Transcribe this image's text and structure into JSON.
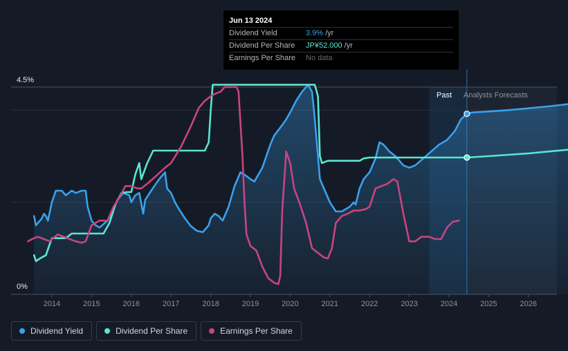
{
  "tooltip": {
    "date": "Jun 13 2024",
    "rows": [
      {
        "label": "Dividend Yield",
        "value": "3.9%",
        "unit": "/yr"
      },
      {
        "label": "Dividend Per Share",
        "value": "JP¥52.000",
        "unit": "/yr"
      },
      {
        "label": "Earnings Per Share",
        "value": "No data",
        "unit": ""
      }
    ]
  },
  "regions": {
    "past": "Past",
    "forecast": "Analysts Forecasts"
  },
  "legend": [
    {
      "label": "Dividend Yield",
      "color": "#3aa1ee"
    },
    {
      "label": "Dividend Per Share",
      "color": "#58e7d2"
    },
    {
      "label": "Earnings Per Share",
      "color": "#c8457e"
    }
  ],
  "chart_data": {
    "type": "line",
    "title": "",
    "y_axis": {
      "min_label": "0%",
      "max_label": "4.5%",
      "ylim": [
        0,
        4.5
      ]
    },
    "x_axis": {
      "ticks": [
        "2014",
        "2015",
        "2016",
        "2017",
        "2018",
        "2019",
        "2020",
        "2021",
        "2022",
        "2023",
        "2024",
        "2025",
        "2026"
      ],
      "xlim": [
        2013.3,
        2027.0
      ]
    },
    "past_region_start": 2023.5,
    "forecast_start": 2024.45,
    "series": [
      {
        "name": "Dividend Yield",
        "color": "#3aa1ee",
        "filled": true,
        "points": [
          [
            2013.55,
            1.7
          ],
          [
            2013.6,
            1.5
          ],
          [
            2013.75,
            1.65
          ],
          [
            2013.8,
            1.75
          ],
          [
            2013.85,
            1.7
          ],
          [
            2013.9,
            1.6
          ],
          [
            2014.0,
            2.0
          ],
          [
            2014.1,
            2.25
          ],
          [
            2014.25,
            2.25
          ],
          [
            2014.35,
            2.15
          ],
          [
            2014.5,
            2.25
          ],
          [
            2014.6,
            2.2
          ],
          [
            2014.75,
            2.25
          ],
          [
            2014.85,
            2.25
          ],
          [
            2014.9,
            1.9
          ],
          [
            2015.0,
            1.6
          ],
          [
            2015.1,
            1.5
          ],
          [
            2015.2,
            1.45
          ],
          [
            2015.4,
            1.6
          ],
          [
            2015.5,
            1.75
          ],
          [
            2015.65,
            2.05
          ],
          [
            2015.8,
            2.2
          ],
          [
            2015.95,
            2.15
          ],
          [
            2016.0,
            2.0
          ],
          [
            2016.1,
            2.15
          ],
          [
            2016.2,
            2.2
          ],
          [
            2016.3,
            1.75
          ],
          [
            2016.35,
            2.05
          ],
          [
            2016.5,
            2.25
          ],
          [
            2016.7,
            2.5
          ],
          [
            2016.85,
            2.65
          ],
          [
            2016.9,
            2.3
          ],
          [
            2017.0,
            2.2
          ],
          [
            2017.1,
            2.0
          ],
          [
            2017.2,
            1.85
          ],
          [
            2017.35,
            1.65
          ],
          [
            2017.5,
            1.48
          ],
          [
            2017.65,
            1.38
          ],
          [
            2017.8,
            1.35
          ],
          [
            2017.95,
            1.5
          ],
          [
            2018.0,
            1.65
          ],
          [
            2018.1,
            1.75
          ],
          [
            2018.2,
            1.7
          ],
          [
            2018.3,
            1.6
          ],
          [
            2018.45,
            1.9
          ],
          [
            2018.6,
            2.35
          ],
          [
            2018.75,
            2.65
          ],
          [
            2018.85,
            2.6
          ],
          [
            2019.0,
            2.5
          ],
          [
            2019.1,
            2.45
          ],
          [
            2019.3,
            2.75
          ],
          [
            2019.5,
            3.25
          ],
          [
            2019.6,
            3.45
          ],
          [
            2019.75,
            3.62
          ],
          [
            2019.9,
            3.8
          ],
          [
            2020.0,
            3.95
          ],
          [
            2020.15,
            4.2
          ],
          [
            2020.3,
            4.4
          ],
          [
            2020.45,
            4.55
          ],
          [
            2020.55,
            4.4
          ],
          [
            2020.6,
            4.0
          ],
          [
            2020.7,
            3.0
          ],
          [
            2020.75,
            2.5
          ],
          [
            2020.85,
            2.3
          ],
          [
            2021.0,
            2.0
          ],
          [
            2021.15,
            1.8
          ],
          [
            2021.3,
            1.8
          ],
          [
            2021.5,
            1.9
          ],
          [
            2021.6,
            2.0
          ],
          [
            2021.65,
            1.95
          ],
          [
            2021.75,
            2.3
          ],
          [
            2021.85,
            2.5
          ],
          [
            2022.0,
            2.65
          ],
          [
            2022.15,
            2.95
          ],
          [
            2022.25,
            3.3
          ],
          [
            2022.35,
            3.25
          ],
          [
            2022.5,
            3.1
          ],
          [
            2022.65,
            3.0
          ],
          [
            2022.85,
            2.8
          ],
          [
            2023.0,
            2.75
          ],
          [
            2023.15,
            2.8
          ],
          [
            2023.35,
            2.95
          ],
          [
            2023.55,
            3.1
          ],
          [
            2023.75,
            3.25
          ],
          [
            2023.95,
            3.35
          ],
          [
            2024.15,
            3.55
          ],
          [
            2024.3,
            3.8
          ],
          [
            2024.45,
            3.92
          ],
          [
            2024.6,
            3.95
          ],
          [
            2025.0,
            3.97
          ],
          [
            2025.5,
            4.0
          ],
          [
            2026.0,
            4.04
          ],
          [
            2026.5,
            4.08
          ],
          [
            2027.0,
            4.13
          ]
        ]
      },
      {
        "name": "Dividend Per Share",
        "color": "#58e7d2",
        "filled": false,
        "points": [
          [
            2013.55,
            0.85
          ],
          [
            2013.6,
            0.72
          ],
          [
            2013.7,
            0.78
          ],
          [
            2013.85,
            0.85
          ],
          [
            2013.95,
            1.1
          ],
          [
            2014.0,
            1.22
          ],
          [
            2014.2,
            1.22
          ],
          [
            2014.35,
            1.22
          ],
          [
            2014.5,
            1.32
          ],
          [
            2014.8,
            1.32
          ],
          [
            2015.0,
            1.32
          ],
          [
            2015.15,
            1.32
          ],
          [
            2015.3,
            1.32
          ],
          [
            2015.45,
            1.55
          ],
          [
            2015.6,
            1.95
          ],
          [
            2015.75,
            2.2
          ],
          [
            2015.9,
            2.22
          ],
          [
            2016.0,
            2.22
          ],
          [
            2016.1,
            2.6
          ],
          [
            2016.2,
            2.85
          ],
          [
            2016.25,
            2.5
          ],
          [
            2016.4,
            2.85
          ],
          [
            2016.55,
            3.12
          ],
          [
            2016.65,
            3.12
          ],
          [
            2017.0,
            3.12
          ],
          [
            2017.5,
            3.12
          ],
          [
            2017.85,
            3.12
          ],
          [
            2017.95,
            3.3
          ],
          [
            2018.0,
            4.0
          ],
          [
            2018.05,
            4.55
          ],
          [
            2018.5,
            4.55
          ],
          [
            2019.0,
            4.55
          ],
          [
            2019.5,
            4.55
          ],
          [
            2020.0,
            4.55
          ],
          [
            2020.5,
            4.55
          ],
          [
            2020.62,
            4.55
          ],
          [
            2020.7,
            4.3
          ],
          [
            2020.75,
            3.0
          ],
          [
            2020.8,
            2.85
          ],
          [
            2020.95,
            2.9
          ],
          [
            2021.0,
            2.9
          ],
          [
            2021.5,
            2.9
          ],
          [
            2021.75,
            2.9
          ],
          [
            2021.85,
            2.95
          ],
          [
            2022.0,
            2.97
          ],
          [
            2022.5,
            2.97
          ],
          [
            2023.0,
            2.97
          ],
          [
            2023.5,
            2.97
          ],
          [
            2024.0,
            2.97
          ],
          [
            2024.45,
            2.97
          ],
          [
            2025.0,
            3.0
          ],
          [
            2025.5,
            3.03
          ],
          [
            2026.0,
            3.06
          ],
          [
            2026.5,
            3.1
          ],
          [
            2027.0,
            3.14
          ]
        ]
      },
      {
        "name": "Earnings Per Share",
        "color": "#c8457e",
        "filled": false,
        "points": [
          [
            2013.4,
            1.15
          ],
          [
            2013.5,
            1.2
          ],
          [
            2013.65,
            1.25
          ],
          [
            2013.8,
            1.2
          ],
          [
            2013.95,
            1.15
          ],
          [
            2014.0,
            1.2
          ],
          [
            2014.15,
            1.3
          ],
          [
            2014.3,
            1.25
          ],
          [
            2014.45,
            1.2
          ],
          [
            2014.6,
            1.15
          ],
          [
            2014.75,
            1.12
          ],
          [
            2014.85,
            1.15
          ],
          [
            2015.0,
            1.5
          ],
          [
            2015.2,
            1.6
          ],
          [
            2015.4,
            1.6
          ],
          [
            2015.55,
            1.9
          ],
          [
            2015.7,
            2.1
          ],
          [
            2015.85,
            2.35
          ],
          [
            2016.0,
            2.35
          ],
          [
            2016.15,
            2.3
          ],
          [
            2016.25,
            2.3
          ],
          [
            2016.4,
            2.4
          ],
          [
            2016.6,
            2.55
          ],
          [
            2016.85,
            2.75
          ],
          [
            2017.0,
            2.85
          ],
          [
            2017.25,
            3.2
          ],
          [
            2017.5,
            3.65
          ],
          [
            2017.7,
            4.05
          ],
          [
            2017.85,
            4.2
          ],
          [
            2018.0,
            4.3
          ],
          [
            2018.1,
            4.35
          ],
          [
            2018.25,
            4.4
          ],
          [
            2018.35,
            4.5
          ],
          [
            2018.5,
            4.5
          ],
          [
            2018.65,
            4.5
          ],
          [
            2018.7,
            4.4
          ],
          [
            2018.8,
            3.0
          ],
          [
            2018.85,
            2.0
          ],
          [
            2018.9,
            1.3
          ],
          [
            2019.0,
            1.05
          ],
          [
            2019.15,
            0.95
          ],
          [
            2019.3,
            0.6
          ],
          [
            2019.45,
            0.35
          ],
          [
            2019.6,
            0.25
          ],
          [
            2019.7,
            0.22
          ],
          [
            2019.75,
            0.4
          ],
          [
            2019.8,
            1.8
          ],
          [
            2019.9,
            3.1
          ],
          [
            2020.0,
            2.85
          ],
          [
            2020.1,
            2.3
          ],
          [
            2020.25,
            1.95
          ],
          [
            2020.4,
            1.55
          ],
          [
            2020.55,
            1.0
          ],
          [
            2020.7,
            0.9
          ],
          [
            2020.85,
            0.8
          ],
          [
            2020.95,
            0.78
          ],
          [
            2021.05,
            1.0
          ],
          [
            2021.15,
            1.55
          ],
          [
            2021.3,
            1.7
          ],
          [
            2021.45,
            1.75
          ],
          [
            2021.6,
            1.82
          ],
          [
            2021.75,
            1.82
          ],
          [
            2021.9,
            1.85
          ],
          [
            2022.0,
            1.9
          ],
          [
            2022.15,
            2.3
          ],
          [
            2022.3,
            2.35
          ],
          [
            2022.45,
            2.4
          ],
          [
            2022.6,
            2.5
          ],
          [
            2022.7,
            2.45
          ],
          [
            2022.85,
            1.75
          ],
          [
            2023.0,
            1.15
          ],
          [
            2023.15,
            1.15
          ],
          [
            2023.3,
            1.25
          ],
          [
            2023.5,
            1.25
          ],
          [
            2023.65,
            1.2
          ],
          [
            2023.8,
            1.2
          ],
          [
            2023.95,
            1.45
          ],
          [
            2024.1,
            1.58
          ],
          [
            2024.25,
            1.6
          ]
        ]
      }
    ],
    "markers": [
      {
        "series": "Dividend Yield",
        "x": 2024.45,
        "y": 3.92
      },
      {
        "series": "Dividend Per Share",
        "x": 2024.45,
        "y": 2.97
      }
    ]
  }
}
